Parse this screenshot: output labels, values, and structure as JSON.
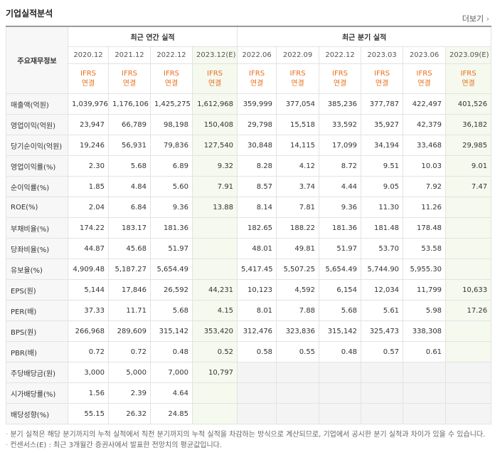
{
  "header": {
    "title": "기업실적분석",
    "more": "더보기"
  },
  "table": {
    "corner": "주요재무정보",
    "groups": [
      {
        "label": "최근 연간 실적",
        "span": 4
      },
      {
        "label": "최근 분기 실적",
        "span": 6
      }
    ],
    "periods": [
      "2020.12",
      "2021.12",
      "2022.12",
      "2023.12(E)",
      "2022.06",
      "2022.09",
      "2022.12",
      "2023.03",
      "2023.06",
      "2023.09(E)"
    ],
    "standards": [
      {
        "std": "IFRS",
        "basis": "연결"
      },
      {
        "std": "IFRS",
        "basis": "연결"
      },
      {
        "std": "IFRS",
        "basis": "연결"
      },
      {
        "std": "IFRS",
        "basis": "연결"
      },
      {
        "std": "IFRS",
        "basis": "연결"
      },
      {
        "std": "IFRS",
        "basis": "연결"
      },
      {
        "std": "IFRS",
        "basis": "연결"
      },
      {
        "std": "IFRS",
        "basis": "연결"
      },
      {
        "std": "IFRS",
        "basis": "연결"
      },
      {
        "std": "IFRS",
        "basis": "연결"
      }
    ],
    "sections": [
      [
        {
          "label": "매출액(억원)",
          "values": [
            "1,039,976",
            "1,176,106",
            "1,425,275",
            "1,612,968",
            "359,999",
            "377,054",
            "385,236",
            "377,787",
            "422,497",
            "401,526"
          ]
        },
        {
          "label": "영업이익(억원)",
          "values": [
            "23,947",
            "66,789",
            "98,198",
            "150,408",
            "29,798",
            "15,518",
            "33,592",
            "35,927",
            "42,379",
            "36,182"
          ]
        },
        {
          "label": "당기순이익(억원)",
          "values": [
            "19,246",
            "56,931",
            "79,836",
            "127,540",
            "30,848",
            "14,115",
            "17,099",
            "34,194",
            "33,468",
            "29,985"
          ]
        }
      ],
      [
        {
          "label": "영업이익률(%)",
          "values": [
            "2.30",
            "5.68",
            "6.89",
            "9.32",
            "8.28",
            "4.12",
            "8.72",
            "9.51",
            "10.03",
            "9.01"
          ]
        },
        {
          "label": "순이익률(%)",
          "values": [
            "1.85",
            "4.84",
            "5.60",
            "7.91",
            "8.57",
            "3.74",
            "4.44",
            "9.05",
            "7.92",
            "7.47"
          ]
        },
        {
          "label": "ROE(%)",
          "values": [
            "2.04",
            "6.84",
            "9.36",
            "13.88",
            "8.14",
            "7.81",
            "9.36",
            "11.30",
            "11.26",
            null
          ]
        }
      ],
      [
        {
          "label": "부채비율(%)",
          "values": [
            "174.22",
            "183.17",
            "181.36",
            null,
            "182.65",
            "188.22",
            "181.36",
            "181.48",
            "178.48",
            null
          ]
        },
        {
          "label": "당좌비율(%)",
          "values": [
            "44.87",
            "45.68",
            "51.97",
            null,
            "48.01",
            "49.81",
            "51.97",
            "53.70",
            "53.58",
            null
          ]
        },
        {
          "label": "유보율(%)",
          "values": [
            "4,909.48",
            "5,187.27",
            "5,654.49",
            null,
            "5,417.45",
            "5,507.25",
            "5,654.49",
            "5,744.90",
            "5,955.30",
            null
          ]
        }
      ],
      [
        {
          "label": "EPS(원)",
          "values": [
            "5,144",
            "17,846",
            "26,592",
            "44,231",
            "10,123",
            "4,592",
            "6,154",
            "12,034",
            "11,799",
            "10,633"
          ]
        },
        {
          "label": "PER(배)",
          "values": [
            "37.33",
            "11.71",
            "5.68",
            "4.15",
            "8.01",
            "7.88",
            "5.68",
            "5.61",
            "5.98",
            "17.26"
          ]
        },
        {
          "label": "BPS(원)",
          "values": [
            "266,968",
            "289,609",
            "315,142",
            "353,420",
            "312,476",
            "323,836",
            "315,142",
            "325,473",
            "338,308",
            null
          ]
        },
        {
          "label": "PBR(배)",
          "values": [
            "0.72",
            "0.72",
            "0.48",
            "0.52",
            "0.58",
            "0.55",
            "0.48",
            "0.57",
            "0.61",
            null
          ]
        }
      ],
      [
        {
          "label": "주당배당금(원)",
          "values": [
            "3,000",
            "5,000",
            "7,000",
            "10,797",
            null,
            null,
            null,
            null,
            null,
            null
          ]
        },
        {
          "label": "시가배당률(%)",
          "values": [
            "1.56",
            "2.39",
            "4.64",
            null,
            null,
            null,
            null,
            null,
            null,
            null
          ]
        },
        {
          "label": "배당성향(%)",
          "values": [
            "55.15",
            "26.32",
            "24.85",
            null,
            null,
            null,
            null,
            null,
            null,
            null
          ]
        }
      ]
    ]
  },
  "notes": [
    "분기 실적은 해당 분기까지의 누적 실적에서 직전 분기까지의 누적 실적을 차감하는 방식으로 계산되므로, 기업에서 공시한 분기 실적과 차이가 있을 수 있습니다.",
    "컨센서스(E) : 최근 3개월간 증권사에서 발표한 전망치의 평균값입니다."
  ]
}
